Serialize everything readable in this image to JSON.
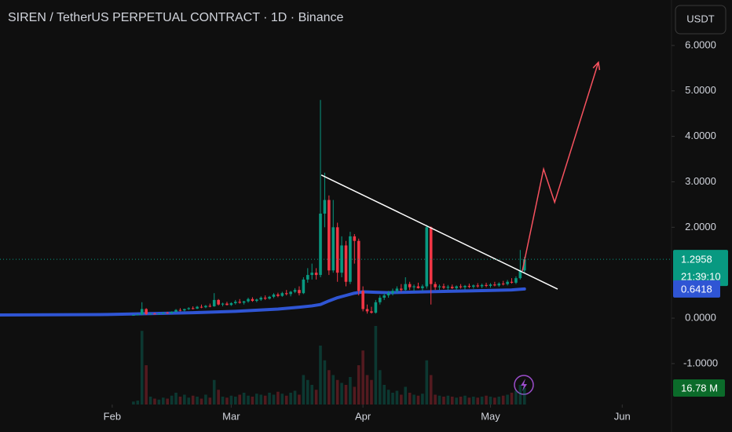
{
  "chart_data": {
    "type": "candlestick",
    "title": "SIREN / TetherUS PERPETUAL CONTRACT · 1D · Binance",
    "currency": "USDT",
    "up_color": "#089981",
    "down_color": "#f23645",
    "grid": false,
    "xlim": [
      4.6,
      162.6
    ],
    "xticks": [
      {
        "value": 31,
        "label": "Feb"
      },
      {
        "value": 59,
        "label": "Mar"
      },
      {
        "value": 90,
        "label": "Apr"
      },
      {
        "value": 120,
        "label": "May"
      },
      {
        "value": 151,
        "label": "Jun"
      }
    ],
    "ylim": [
      -1.9,
      7.0
    ],
    "yticks": [
      {
        "value": 6,
        "label": "6.0000"
      },
      {
        "value": 5,
        "label": "5.0000"
      },
      {
        "value": 4,
        "label": "4.0000"
      },
      {
        "value": 3,
        "label": "3.0000"
      },
      {
        "value": 2,
        "label": "2.0000"
      },
      {
        "value": 0,
        "label": "0.0000"
      },
      {
        "value": -1,
        "label": "-1.0000"
      }
    ],
    "x": [
      36,
      37,
      38,
      39,
      40,
      41,
      42,
      43,
      44,
      45,
      46,
      47,
      48,
      49,
      50,
      51,
      52,
      53,
      54,
      55,
      56,
      57,
      58,
      59,
      60,
      61,
      62,
      63,
      64,
      65,
      66,
      67,
      68,
      69,
      70,
      71,
      72,
      73,
      74,
      75,
      76,
      77,
      78,
      79,
      80,
      81,
      82,
      83,
      84,
      85,
      86,
      87,
      88,
      89,
      90,
      91,
      92,
      93,
      94,
      95,
      96,
      97,
      98,
      99,
      100,
      101,
      102,
      103,
      104,
      105,
      106,
      107,
      108,
      109,
      110,
      111,
      112,
      113,
      114,
      115,
      116,
      117,
      118,
      119,
      120,
      121,
      122,
      123,
      124,
      125,
      126,
      127,
      128
    ],
    "ohlc": [
      [
        0.07,
        0.08,
        0.06,
        0.07
      ],
      [
        0.07,
        0.09,
        0.06,
        0.08
      ],
      [
        0.08,
        0.35,
        0.07,
        0.2
      ],
      [
        0.2,
        0.22,
        0.07,
        0.09
      ],
      [
        0.09,
        0.11,
        0.08,
        0.1
      ],
      [
        0.1,
        0.12,
        0.09,
        0.09
      ],
      [
        0.09,
        0.11,
        0.08,
        0.1
      ],
      [
        0.1,
        0.13,
        0.09,
        0.12
      ],
      [
        0.12,
        0.14,
        0.1,
        0.11
      ],
      [
        0.11,
        0.15,
        0.1,
        0.14
      ],
      [
        0.14,
        0.2,
        0.13,
        0.18
      ],
      [
        0.18,
        0.22,
        0.15,
        0.17
      ],
      [
        0.17,
        0.21,
        0.15,
        0.2
      ],
      [
        0.2,
        0.24,
        0.18,
        0.22
      ],
      [
        0.22,
        0.26,
        0.19,
        0.21
      ],
      [
        0.21,
        0.27,
        0.2,
        0.25
      ],
      [
        0.25,
        0.3,
        0.22,
        0.24
      ],
      [
        0.24,
        0.29,
        0.22,
        0.27
      ],
      [
        0.27,
        0.32,
        0.24,
        0.26
      ],
      [
        0.26,
        0.55,
        0.25,
        0.4
      ],
      [
        0.4,
        0.42,
        0.28,
        0.3
      ],
      [
        0.3,
        0.34,
        0.26,
        0.32
      ],
      [
        0.32,
        0.36,
        0.28,
        0.29
      ],
      [
        0.29,
        0.35,
        0.27,
        0.33
      ],
      [
        0.33,
        0.4,
        0.3,
        0.36
      ],
      [
        0.36,
        0.42,
        0.32,
        0.34
      ],
      [
        0.34,
        0.38,
        0.3,
        0.37
      ],
      [
        0.37,
        0.45,
        0.34,
        0.42
      ],
      [
        0.42,
        0.46,
        0.36,
        0.38
      ],
      [
        0.38,
        0.43,
        0.35,
        0.41
      ],
      [
        0.41,
        0.48,
        0.38,
        0.45
      ],
      [
        0.45,
        0.5,
        0.4,
        0.43
      ],
      [
        0.43,
        0.49,
        0.41,
        0.47
      ],
      [
        0.47,
        0.55,
        0.44,
        0.52
      ],
      [
        0.52,
        0.56,
        0.46,
        0.49
      ],
      [
        0.49,
        0.58,
        0.47,
        0.55
      ],
      [
        0.55,
        0.62,
        0.5,
        0.53
      ],
      [
        0.53,
        0.6,
        0.48,
        0.58
      ],
      [
        0.58,
        0.66,
        0.55,
        0.62
      ],
      [
        0.62,
        0.7,
        0.5,
        0.55
      ],
      [
        0.55,
        0.9,
        0.53,
        0.85
      ],
      [
        0.85,
        1.1,
        0.78,
        0.95
      ],
      [
        0.95,
        1.2,
        0.85,
        1.0
      ],
      [
        1.0,
        1.1,
        0.85,
        0.95
      ],
      [
        0.95,
        4.8,
        0.9,
        2.3
      ],
      [
        2.3,
        3.2,
        2.0,
        2.6
      ],
      [
        2.6,
        2.7,
        0.95,
        1.05
      ],
      [
        1.05,
        2.6,
        1.0,
        2.0
      ],
      [
        2.0,
        2.1,
        0.8,
        1.0
      ],
      [
        1.0,
        1.8,
        0.9,
        1.6
      ],
      [
        1.6,
        1.7,
        0.7,
        0.8
      ],
      [
        0.8,
        1.9,
        0.75,
        1.8
      ],
      [
        1.8,
        1.85,
        1.2,
        1.7
      ],
      [
        1.7,
        1.75,
        0.5,
        0.6
      ],
      [
        0.6,
        0.7,
        0.15,
        0.2
      ],
      [
        0.2,
        0.3,
        0.1,
        0.15
      ],
      [
        0.15,
        0.25,
        0.1,
        0.12
      ],
      [
        0.12,
        0.4,
        0.1,
        0.35
      ],
      [
        0.35,
        0.5,
        0.3,
        0.45
      ],
      [
        0.45,
        0.55,
        0.4,
        0.5
      ],
      [
        0.5,
        0.6,
        0.45,
        0.55
      ],
      [
        0.55,
        0.65,
        0.5,
        0.6
      ],
      [
        0.6,
        0.7,
        0.55,
        0.65
      ],
      [
        0.65,
        0.75,
        0.58,
        0.62
      ],
      [
        0.62,
        0.9,
        0.6,
        0.75
      ],
      [
        0.75,
        0.8,
        0.62,
        0.68
      ],
      [
        0.68,
        0.74,
        0.6,
        0.7
      ],
      [
        0.7,
        0.78,
        0.65,
        0.66
      ],
      [
        0.66,
        0.74,
        0.6,
        0.7
      ],
      [
        0.7,
        2.05,
        0.65,
        2.0
      ],
      [
        2.0,
        2.02,
        0.3,
        0.75
      ],
      [
        0.75,
        0.8,
        0.62,
        0.68
      ],
      [
        0.68,
        0.74,
        0.62,
        0.7
      ],
      [
        0.7,
        0.76,
        0.64,
        0.67
      ],
      [
        0.67,
        0.73,
        0.62,
        0.69
      ],
      [
        0.69,
        0.74,
        0.64,
        0.66
      ],
      [
        0.66,
        0.72,
        0.62,
        0.7
      ],
      [
        0.7,
        0.75,
        0.65,
        0.68
      ],
      [
        0.68,
        0.73,
        0.63,
        0.71
      ],
      [
        0.71,
        0.76,
        0.66,
        0.69
      ],
      [
        0.69,
        0.74,
        0.65,
        0.72
      ],
      [
        0.72,
        0.77,
        0.67,
        0.7
      ],
      [
        0.7,
        0.76,
        0.66,
        0.73
      ],
      [
        0.73,
        0.78,
        0.68,
        0.71
      ],
      [
        0.71,
        0.77,
        0.67,
        0.74
      ],
      [
        0.74,
        0.8,
        0.7,
        0.72
      ],
      [
        0.72,
        0.79,
        0.69,
        0.76
      ],
      [
        0.76,
        0.82,
        0.72,
        0.75
      ],
      [
        0.75,
        0.84,
        0.72,
        0.8
      ],
      [
        0.8,
        0.88,
        0.76,
        0.78
      ],
      [
        0.78,
        0.92,
        0.75,
        0.88
      ],
      [
        0.88,
        1.5,
        0.85,
        1.05
      ],
      [
        1.05,
        1.35,
        1.0,
        1.2958
      ]
    ],
    "volume": [
      3,
      4,
      75,
      40,
      8,
      6,
      5,
      7,
      6,
      9,
      12,
      8,
      10,
      7,
      9,
      8,
      6,
      10,
      7,
      25,
      15,
      8,
      7,
      9,
      8,
      10,
      12,
      9,
      8,
      11,
      10,
      9,
      12,
      10,
      13,
      11,
      9,
      12,
      14,
      10,
      30,
      25,
      20,
      15,
      60,
      45,
      35,
      30,
      25,
      22,
      20,
      28,
      18,
      40,
      55,
      30,
      25,
      80,
      35,
      20,
      15,
      12,
      14,
      10,
      18,
      12,
      10,
      9,
      11,
      45,
      30,
      10,
      9,
      8,
      9,
      8,
      7,
      8,
      9,
      7,
      8,
      7,
      8,
      9,
      8,
      7,
      8,
      9,
      10,
      12,
      14,
      20,
      16.78
    ],
    "volume_label": "16.78 M",
    "countdown": "21:39:10",
    "ma": {
      "color": "#2f55d4",
      "x": [
        4.6,
        30,
        40,
        50,
        60,
        70,
        75,
        78,
        80,
        82,
        84,
        86,
        88,
        90,
        93,
        96,
        100,
        105,
        110,
        115,
        120,
        125,
        128
      ],
      "values": [
        0.07,
        0.08,
        0.1,
        0.12,
        0.15,
        0.2,
        0.24,
        0.27,
        0.3,
        0.38,
        0.45,
        0.5,
        0.55,
        0.58,
        0.57,
        0.56,
        0.57,
        0.58,
        0.59,
        0.6,
        0.61,
        0.62,
        0.6418
      ]
    },
    "trendline": {
      "color": "#ffffff",
      "x": [
        80.2,
        135.8
      ],
      "values": [
        3.15,
        0.64
      ]
    },
    "projection": {
      "color": "#f7525f",
      "x": [
        127.5,
        132.5,
        135.1,
        145.4
      ],
      "values": [
        1.04,
        3.28,
        2.55,
        5.63
      ]
    }
  }
}
